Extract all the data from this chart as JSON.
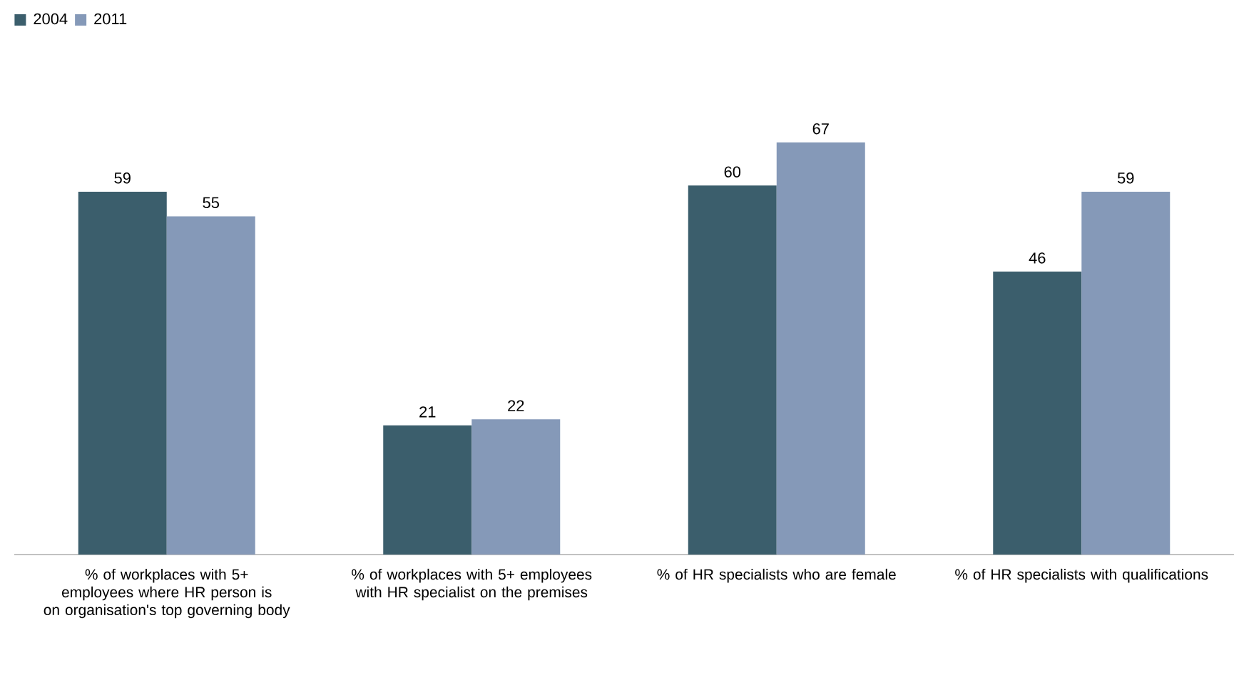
{
  "chart_data": {
    "type": "bar",
    "categories": [
      "% of workplaces with 5+ employees where HR person is on organisation's top governing body",
      "% of workplaces with 5+ employees with HR specialist on the premises",
      "% of HR specialists who are female",
      "% of HR specialists with qualifications"
    ],
    "series": [
      {
        "name": "2004",
        "color": "#3b5e6c",
        "values": [
          59,
          21,
          60,
          46
        ]
      },
      {
        "name": "2011",
        "color": "#8599b8",
        "values": [
          55,
          22,
          67,
          59
        ]
      }
    ],
    "data_labels": true,
    "legend": "top left",
    "grid": false
  }
}
